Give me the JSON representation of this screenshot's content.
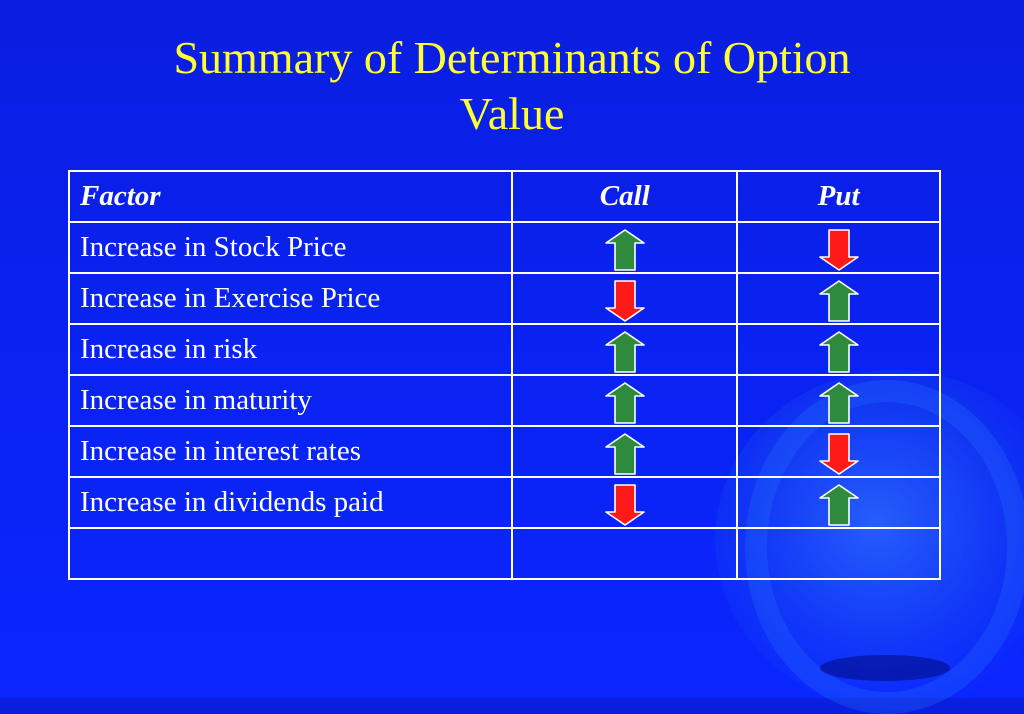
{
  "title": {
    "line1": "Summary of Determinants of Option",
    "line2": "Value"
  },
  "table": {
    "headers": [
      "Factor",
      "Call",
      "Put"
    ],
    "rows": [
      {
        "factor": "Increase in Stock Price",
        "call": "up",
        "put": "down"
      },
      {
        "factor": "Increase in Exercise Price",
        "call": "down",
        "put": "up"
      },
      {
        "factor": "Increase in risk",
        "call": "up",
        "put": "up"
      },
      {
        "factor": "Increase in maturity",
        "call": "up",
        "put": "up"
      },
      {
        "factor": "Increase in interest rates",
        "call": "up",
        "put": "down"
      },
      {
        "factor": "Increase in dividends paid",
        "call": "down",
        "put": "up"
      },
      {
        "factor": "",
        "call": "",
        "put": ""
      }
    ]
  },
  "colors": {
    "up_arrow": "#2e8b3e",
    "down_arrow": "#ff1a1a",
    "title_text": "#ffff33",
    "background": "#0a22f0"
  },
  "icons": {
    "up": "arrow-up-icon",
    "down": "arrow-down-icon"
  }
}
